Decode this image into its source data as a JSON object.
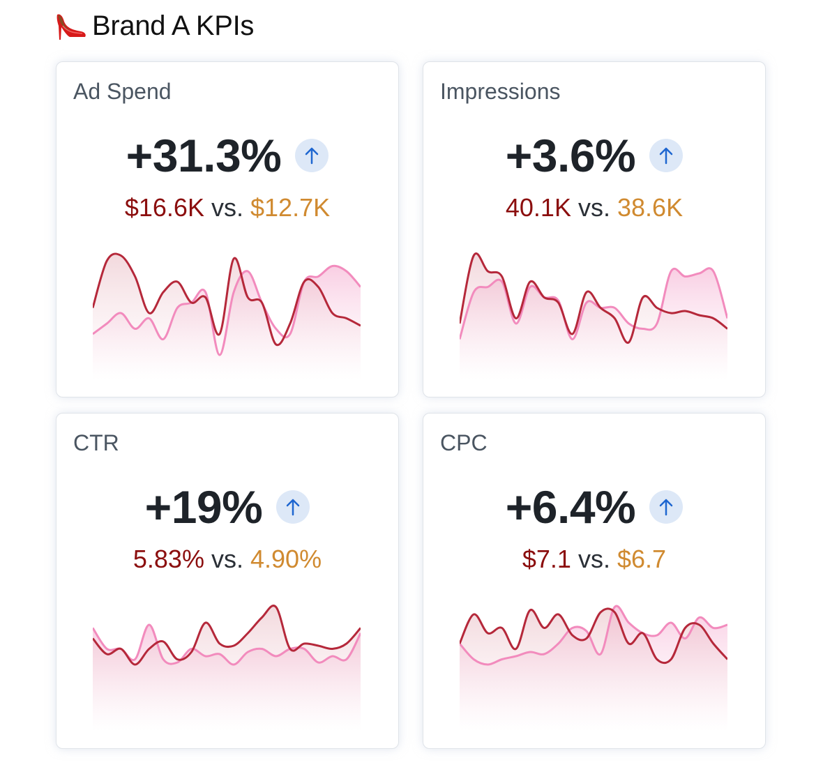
{
  "header": {
    "icon": "high-heel-shoe-emoji",
    "title": "Brand A KPIs"
  },
  "colors": {
    "current_line": "#b5283a",
    "previous_line": "#f28bbd",
    "current_value": "#8b0e0e",
    "previous_value": "#d08a30",
    "badge_bg": "#dde8f7",
    "badge_arrow": "#1e66d0"
  },
  "cards": [
    {
      "label": "Ad Spend",
      "change": "+31.3%",
      "direction": "up",
      "current": "$16.6K",
      "vs": "vs.",
      "previous": "$12.7K"
    },
    {
      "label": "Impressions",
      "change": "+3.6%",
      "direction": "up",
      "current": "40.1K",
      "vs": "vs.",
      "previous": "38.6K"
    },
    {
      "label": "CTR",
      "change": "+19%",
      "direction": "up",
      "current": "5.83%",
      "vs": "vs.",
      "previous": "4.90%"
    },
    {
      "label": "CPC",
      "change": "+6.4%",
      "direction": "up",
      "current": "$7.1",
      "vs": "vs.",
      "previous": "$6.7"
    }
  ],
  "chart_data": [
    {
      "type": "area",
      "title": "Ad Spend",
      "x": [
        0,
        1,
        2,
        3,
        4,
        5,
        6,
        7,
        8,
        9,
        10,
        11,
        12,
        13,
        14,
        15,
        16,
        17,
        18,
        19
      ],
      "series": [
        {
          "name": "current",
          "values": [
            45,
            90,
            95,
            75,
            40,
            60,
            70,
            50,
            55,
            20,
            92,
            55,
            50,
            10,
            30,
            70,
            65,
            40,
            35,
            28
          ]
        },
        {
          "name": "previous",
          "values": [
            20,
            30,
            40,
            25,
            35,
            15,
            45,
            50,
            60,
            0,
            60,
            80,
            50,
            25,
            20,
            70,
            75,
            85,
            80,
            65
          ]
        }
      ],
      "grid": false,
      "legend": "none"
    },
    {
      "type": "area",
      "title": "Impressions",
      "x": [
        0,
        1,
        2,
        3,
        4,
        5,
        6,
        7,
        8,
        9,
        10,
        11,
        12,
        13,
        14,
        15,
        16,
        17,
        18,
        19
      ],
      "series": [
        {
          "name": "current",
          "values": [
            30,
            95,
            80,
            75,
            35,
            70,
            55,
            50,
            20,
            60,
            45,
            35,
            12,
            55,
            45,
            40,
            42,
            38,
            35,
            25
          ]
        },
        {
          "name": "previous",
          "values": [
            15,
            60,
            65,
            70,
            30,
            65,
            55,
            52,
            15,
            50,
            45,
            45,
            30,
            25,
            30,
            80,
            75,
            78,
            80,
            35
          ]
        }
      ],
      "grid": false,
      "legend": "none"
    },
    {
      "type": "area",
      "title": "CTR",
      "x": [
        0,
        1,
        2,
        3,
        4,
        5,
        6,
        7,
        8,
        9,
        10,
        11,
        12,
        13,
        14,
        15,
        16,
        17,
        18,
        19
      ],
      "series": [
        {
          "name": "current",
          "values": [
            65,
            50,
            55,
            40,
            55,
            62,
            45,
            52,
            80,
            60,
            58,
            70,
            85,
            95,
            55,
            60,
            58,
            55,
            60,
            75
          ]
        },
        {
          "name": "previous",
          "values": [
            75,
            55,
            55,
            45,
            78,
            45,
            42,
            55,
            48,
            50,
            40,
            52,
            55,
            48,
            55,
            55,
            42,
            48,
            45,
            70
          ]
        }
      ],
      "grid": false,
      "legend": "none"
    },
    {
      "type": "area",
      "title": "CPC",
      "x": [
        0,
        1,
        2,
        3,
        4,
        5,
        6,
        7,
        8,
        9,
        10,
        11,
        12,
        13,
        14,
        15,
        16,
        17,
        18,
        19
      ],
      "series": [
        {
          "name": "current",
          "values": [
            60,
            88,
            70,
            75,
            55,
            92,
            75,
            88,
            68,
            65,
            90,
            90,
            60,
            70,
            45,
            45,
            75,
            78,
            60,
            45
          ]
        },
        {
          "name": "previous",
          "values": [
            60,
            45,
            40,
            45,
            48,
            52,
            50,
            60,
            75,
            72,
            50,
            95,
            80,
            70,
            68,
            80,
            65,
            85,
            75,
            78
          ]
        }
      ],
      "grid": false,
      "legend": "none"
    }
  ]
}
